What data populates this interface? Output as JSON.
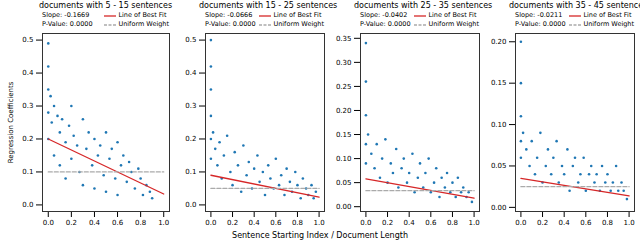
{
  "chart_data": [
    {
      "type": "scatter",
      "title": "documents with 5 - 15 sentences",
      "ylabel": "Regression Coefficients",
      "xlabel": "Sentence Starting Index / Document Length",
      "color": "#1f77b4",
      "marker": "circle",
      "annotations": [
        "Slope: -0.1669",
        "P-Value: 0.0000"
      ],
      "x": [
        0,
        0,
        0,
        0,
        0,
        0.02,
        0.03,
        0.05,
        0.05,
        0.08,
        0.1,
        0.1,
        0.12,
        0.15,
        0.15,
        0.18,
        0.2,
        0.2,
        0.22,
        0.25,
        0.27,
        0.3,
        0.3,
        0.33,
        0.35,
        0.38,
        0.4,
        0.4,
        0.43,
        0.45,
        0.48,
        0.5,
        0.5,
        0.53,
        0.55,
        0.58,
        0.6,
        0.6,
        0.63,
        0.65,
        0.68,
        0.7,
        0.72,
        0.75,
        0.78,
        0.8,
        0.82,
        0.85,
        0.88,
        0.9
      ],
      "values": [
        0.49,
        0.42,
        0.35,
        0.28,
        0.2,
        0.33,
        0.25,
        0.3,
        0.15,
        0.27,
        0.22,
        0.12,
        0.26,
        0.19,
        0.08,
        0.24,
        0.3,
        0.14,
        0.21,
        0.18,
        0.1,
        0.26,
        0.06,
        0.17,
        0.22,
        0.12,
        0.2,
        0.05,
        0.15,
        0.18,
        0.09,
        0.22,
        0.04,
        0.14,
        0.17,
        0.08,
        0.19,
        0.03,
        0.12,
        0.15,
        0.07,
        0.13,
        0.1,
        0.05,
        0.11,
        0.08,
        0.03,
        0.06,
        0.04,
        0.02
      ],
      "series": [
        {
          "name": "Line of Best Fit",
          "type": "line",
          "color": "#d62728",
          "line_style": "solid",
          "x": [
            0,
            1
          ],
          "values": [
            0.2,
            0.0331
          ]
        },
        {
          "name": "Uniform Weight",
          "type": "line",
          "color": "#aaaaaa",
          "line_style": "dashed",
          "x": [
            0,
            1
          ],
          "values": [
            0.1,
            0.1
          ]
        }
      ],
      "xlim": [
        -0.05,
        1.05
      ],
      "xticks": [
        {
          "value": 0,
          "label": "0.0"
        },
        {
          "value": 0.2,
          "label": "0.2"
        },
        {
          "value": 0.4,
          "label": "0.4"
        },
        {
          "value": 0.6,
          "label": "0.6"
        },
        {
          "value": 0.8,
          "label": "0.8"
        },
        {
          "value": 1,
          "label": "1.0"
        }
      ],
      "ylim": [
        -0.02,
        0.52
      ],
      "yticks": [
        {
          "value": 0,
          "label": "0.0"
        },
        {
          "value": 0.1,
          "label": "0.1"
        },
        {
          "value": 0.2,
          "label": "0.2"
        },
        {
          "value": 0.3,
          "label": "0.3"
        },
        {
          "value": 0.4,
          "label": "0.4"
        },
        {
          "value": 0.5,
          "label": "0.5"
        }
      ]
    },
    {
      "type": "scatter",
      "title": "documents with 15 - 25 sentences",
      "color": "#1f77b4",
      "marker": "circle",
      "annotations": [
        "Slope: -0.0666",
        "P-Value: 0.0000"
      ],
      "x": [
        0,
        0,
        0,
        0,
        0,
        0,
        0.02,
        0.04,
        0.06,
        0.08,
        0.1,
        0.12,
        0.15,
        0.18,
        0.2,
        0.22,
        0.25,
        0.28,
        0.3,
        0.33,
        0.35,
        0.38,
        0.4,
        0.43,
        0.45,
        0.48,
        0.5,
        0.53,
        0.55,
        0.58,
        0.6,
        0.63,
        0.65,
        0.68,
        0.7,
        0.73,
        0.75,
        0.78,
        0.8,
        0.83,
        0.85,
        0.88,
        0.9,
        0.93,
        0.95,
        0.97
      ],
      "values": [
        0.5,
        0.42,
        0.35,
        0.27,
        0.2,
        0.14,
        0.22,
        0.17,
        0.12,
        0.19,
        0.08,
        0.15,
        0.21,
        0.1,
        0.06,
        0.16,
        0.12,
        0.04,
        0.18,
        0.09,
        0.13,
        0.05,
        0.11,
        0.15,
        0.07,
        0.1,
        0.03,
        0.12,
        0.08,
        0.05,
        0.14,
        0.06,
        0.09,
        0.03,
        0.11,
        0.07,
        0.04,
        0.1,
        0.06,
        0.02,
        0.08,
        0.05,
        0.03,
        0.06,
        0.02,
        0.04
      ],
      "series": [
        {
          "name": "Line of Best Fit",
          "type": "line",
          "color": "#d62728",
          "line_style": "solid",
          "x": [
            0,
            1
          ],
          "values": [
            0.09,
            0.0234
          ]
        },
        {
          "name": "Uniform Weight",
          "type": "line",
          "color": "#aaaaaa",
          "line_style": "dashed",
          "x": [
            0,
            1
          ],
          "values": [
            0.05,
            0.05
          ]
        }
      ],
      "xlim": [
        -0.05,
        1.05
      ],
      "xticks": [
        {
          "value": 0,
          "label": "0.0"
        },
        {
          "value": 0.2,
          "label": "0.2"
        },
        {
          "value": 0.4,
          "label": "0.4"
        },
        {
          "value": 0.6,
          "label": "0.6"
        },
        {
          "value": 0.8,
          "label": "0.8"
        },
        {
          "value": 1,
          "label": "1.0"
        }
      ],
      "ylim": [
        -0.02,
        0.52
      ],
      "yticks": [
        {
          "value": 0,
          "label": "0.0"
        },
        {
          "value": 0.1,
          "label": "0.1"
        },
        {
          "value": 0.2,
          "label": "0.2"
        },
        {
          "value": 0.3,
          "label": "0.3"
        },
        {
          "value": 0.4,
          "label": "0.4"
        },
        {
          "value": 0.5,
          "label": "0.5"
        }
      ]
    },
    {
      "type": "scatter",
      "title": "documents with 25 - 35 sentences",
      "color": "#1f77b4",
      "marker": "circle",
      "annotations": [
        "Slope: -0.0402",
        "P-Value: 0.0000"
      ],
      "x": [
        0,
        0,
        0,
        0,
        0,
        0.02,
        0.05,
        0.08,
        0.1,
        0.13,
        0.15,
        0.18,
        0.2,
        0.23,
        0.25,
        0.28,
        0.3,
        0.33,
        0.35,
        0.38,
        0.4,
        0.43,
        0.45,
        0.48,
        0.5,
        0.53,
        0.55,
        0.58,
        0.6,
        0.63,
        0.65,
        0.68,
        0.7,
        0.73,
        0.75,
        0.78,
        0.8,
        0.83,
        0.85,
        0.88,
        0.9,
        0.93,
        0.95,
        0.98
      ],
      "values": [
        0.34,
        0.26,
        0.19,
        0.13,
        0.09,
        0.15,
        0.11,
        0.08,
        0.13,
        0.06,
        0.1,
        0.14,
        0.05,
        0.09,
        0.07,
        0.12,
        0.04,
        0.08,
        0.1,
        0.05,
        0.07,
        0.11,
        0.03,
        0.06,
        0.09,
        0.04,
        0.07,
        0.1,
        0.03,
        0.05,
        0.08,
        0.02,
        0.06,
        0.04,
        0.07,
        0.03,
        0.05,
        0.02,
        0.06,
        0.03,
        0.04,
        0.02,
        0.03,
        0.01
      ],
      "series": [
        {
          "name": "Line of Best Fit",
          "type": "line",
          "color": "#d62728",
          "line_style": "solid",
          "x": [
            0,
            1
          ],
          "values": [
            0.058,
            0.0178
          ]
        },
        {
          "name": "Uniform Weight",
          "type": "line",
          "color": "#aaaaaa",
          "line_style": "dashed",
          "x": [
            0,
            1
          ],
          "values": [
            0.0333,
            0.0333
          ]
        }
      ],
      "xlim": [
        -0.05,
        1.05
      ],
      "xticks": [
        {
          "value": 0,
          "label": "0.0"
        },
        {
          "value": 0.2,
          "label": "0.2"
        },
        {
          "value": 0.4,
          "label": "0.4"
        },
        {
          "value": 0.6,
          "label": "0.6"
        },
        {
          "value": 0.8,
          "label": "0.8"
        },
        {
          "value": 1,
          "label": "1.0"
        }
      ],
      "ylim": [
        -0.01,
        0.36
      ],
      "yticks": [
        {
          "value": 0,
          "label": "0.00"
        },
        {
          "value": 0.05,
          "label": "0.05"
        },
        {
          "value": 0.1,
          "label": "0.10"
        },
        {
          "value": 0.15,
          "label": "0.15"
        },
        {
          "value": 0.2,
          "label": "0.20"
        },
        {
          "value": 0.25,
          "label": "0.25"
        },
        {
          "value": 0.3,
          "label": "0.30"
        },
        {
          "value": 0.35,
          "label": "0.35"
        }
      ]
    },
    {
      "type": "scatter",
      "title": "documents with 35 - 45 sentences",
      "color": "#1f77b4",
      "marker": "circle",
      "annotations": [
        "Slope: -0.0211",
        "P-Value: 0.0000"
      ],
      "x": [
        0,
        0,
        0,
        0,
        0,
        0.02,
        0.05,
        0.08,
        0.1,
        0.13,
        0.15,
        0.18,
        0.2,
        0.23,
        0.25,
        0.28,
        0.3,
        0.33,
        0.35,
        0.38,
        0.4,
        0.43,
        0.45,
        0.48,
        0.5,
        0.53,
        0.55,
        0.58,
        0.6,
        0.63,
        0.65,
        0.68,
        0.7,
        0.73,
        0.75,
        0.78,
        0.8,
        0.83,
        0.85,
        0.88,
        0.9,
        0.93,
        0.95,
        0.98
      ],
      "values": [
        0.2,
        0.15,
        0.11,
        0.08,
        0.06,
        0.09,
        0.07,
        0.05,
        0.08,
        0.04,
        0.06,
        0.09,
        0.03,
        0.05,
        0.07,
        0.04,
        0.06,
        0.08,
        0.03,
        0.05,
        0.04,
        0.07,
        0.02,
        0.05,
        0.06,
        0.03,
        0.04,
        0.06,
        0.02,
        0.04,
        0.05,
        0.03,
        0.04,
        0.02,
        0.05,
        0.03,
        0.04,
        0.02,
        0.03,
        0.05,
        0.02,
        0.03,
        0.02,
        0.01
      ],
      "series": [
        {
          "name": "Line of Best Fit",
          "type": "line",
          "color": "#d62728",
          "line_style": "solid",
          "x": [
            0,
            1
          ],
          "values": [
            0.035,
            0.0139
          ]
        },
        {
          "name": "Uniform Weight",
          "type": "line",
          "color": "#aaaaaa",
          "line_style": "dashed",
          "x": [
            0,
            1
          ],
          "values": [
            0.025,
            0.025
          ]
        }
      ],
      "xlim": [
        -0.05,
        1.05
      ],
      "xticks": [
        {
          "value": 0,
          "label": "0.0"
        },
        {
          "value": 0.2,
          "label": "0.2"
        },
        {
          "value": 0.4,
          "label": "0.4"
        },
        {
          "value": 0.6,
          "label": "0.6"
        },
        {
          "value": 0.8,
          "label": "0.8"
        },
        {
          "value": 1,
          "label": "1.0"
        }
      ],
      "ylim": [
        -0.005,
        0.21
      ],
      "yticks": [
        {
          "value": 0,
          "label": "0.00"
        },
        {
          "value": 0.05,
          "label": "0.05"
        },
        {
          "value": 0.1,
          "label": "0.10"
        },
        {
          "value": 0.15,
          "label": "0.15"
        },
        {
          "value": 0.2,
          "label": "0.20"
        }
      ]
    }
  ]
}
